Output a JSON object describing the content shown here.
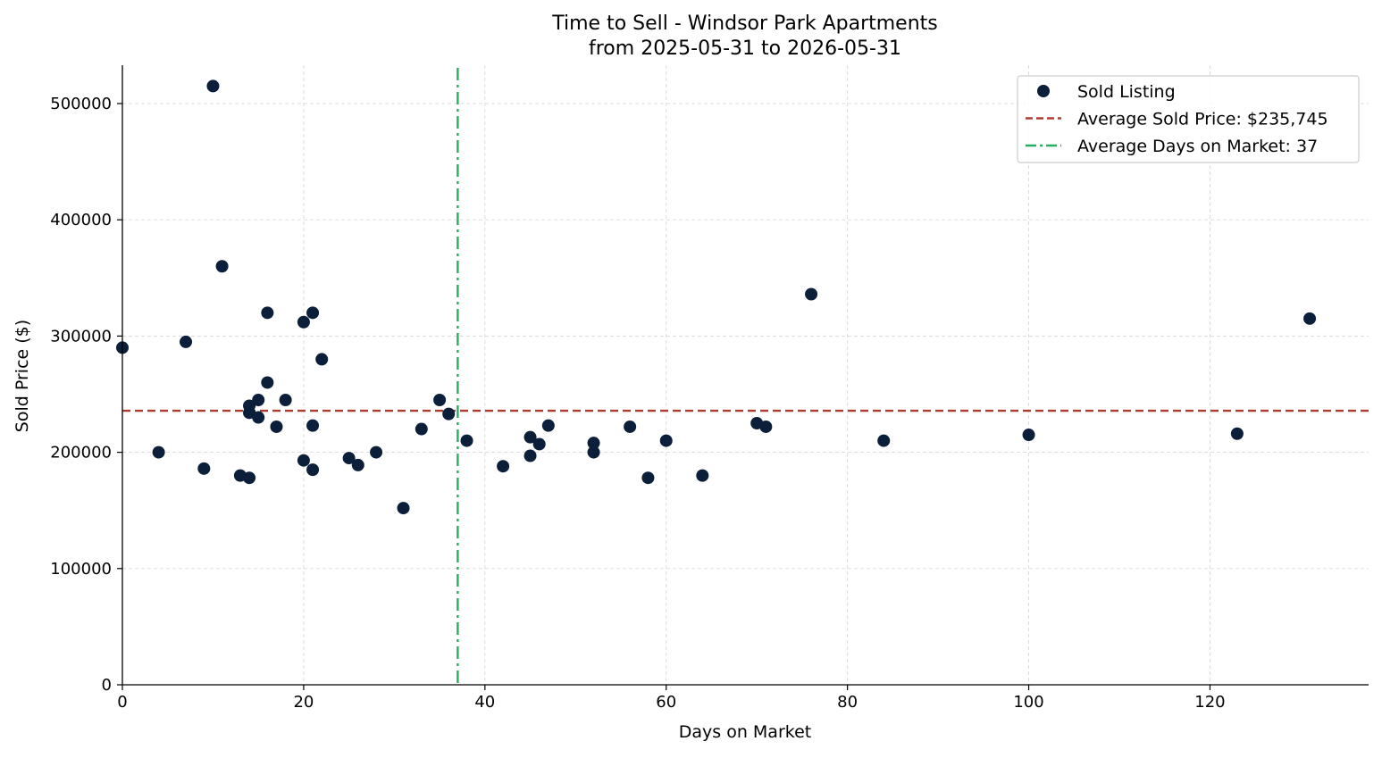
{
  "chart_data": {
    "type": "scatter",
    "title": "Time to Sell - Windsor Park Apartments",
    "subtitle": "from 2025-05-31 to 2026-05-31",
    "xlabel": "Days on Market",
    "ylabel": "Sold Price ($)",
    "xlim": [
      0,
      137.5
    ],
    "ylim": [
      0,
      533000
    ],
    "x_ticks": [
      0,
      20,
      40,
      60,
      80,
      100,
      120
    ],
    "y_ticks": [
      0,
      100000,
      200000,
      300000,
      400000,
      500000
    ],
    "grid": true,
    "legend_position": "top-right",
    "series": [
      {
        "name": "Sold Listing",
        "color": "#0b1f3a",
        "points": [
          [
            0,
            290000
          ],
          [
            4,
            200000
          ],
          [
            7,
            295000
          ],
          [
            9,
            186000
          ],
          [
            10,
            515000
          ],
          [
            11,
            360000
          ],
          [
            13,
            180000
          ],
          [
            14,
            178000
          ],
          [
            14,
            240000
          ],
          [
            14,
            234000
          ],
          [
            15,
            245000
          ],
          [
            15,
            230000
          ],
          [
            16,
            320000
          ],
          [
            16,
            260000
          ],
          [
            17,
            222000
          ],
          [
            18,
            245000
          ],
          [
            20,
            312000
          ],
          [
            20,
            193000
          ],
          [
            21,
            320000
          ],
          [
            21,
            223000
          ],
          [
            21,
            185000
          ],
          [
            22,
            280000
          ],
          [
            25,
            195000
          ],
          [
            26,
            189000
          ],
          [
            28,
            200000
          ],
          [
            31,
            152000
          ],
          [
            33,
            220000
          ],
          [
            35,
            245000
          ],
          [
            36,
            233000
          ],
          [
            38,
            210000
          ],
          [
            42,
            188000
          ],
          [
            45,
            213000
          ],
          [
            45,
            197000
          ],
          [
            46,
            207000
          ],
          [
            47,
            223000
          ],
          [
            52,
            208000
          ],
          [
            52,
            200000
          ],
          [
            56,
            222000
          ],
          [
            58,
            178000
          ],
          [
            60,
            210000
          ],
          [
            64,
            180000
          ],
          [
            70,
            225000
          ],
          [
            71,
            222000
          ],
          [
            76,
            336000
          ],
          [
            84,
            210000
          ],
          [
            100,
            215000
          ],
          [
            123,
            216000
          ],
          [
            131,
            315000
          ]
        ]
      }
    ],
    "reference_lines": [
      {
        "name": "Average Sold Price: $235,745",
        "orientation": "horizontal",
        "value": 235745,
        "color": "#b03a2e",
        "style": "dashed"
      },
      {
        "name": "Average Days on Market: 37",
        "orientation": "vertical",
        "value": 37,
        "color": "#27ae60",
        "style": "dashdot"
      }
    ]
  }
}
